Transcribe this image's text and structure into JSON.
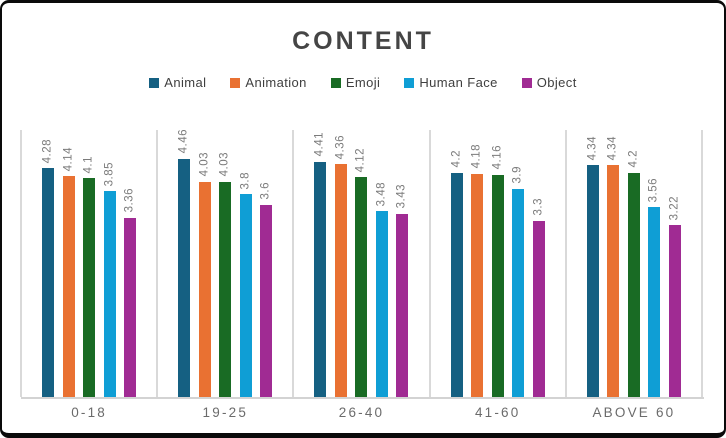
{
  "chart_data": {
    "type": "bar",
    "title": "CONTENT",
    "categories": [
      "0-18",
      "19-25",
      "26-40",
      "41-60",
      "ABOVE 60"
    ],
    "series": [
      {
        "name": "Animal",
        "color": "#156082",
        "values": [
          4.28,
          4.46,
          4.41,
          4.2,
          4.34
        ]
      },
      {
        "name": "Animation",
        "color": "#E97132",
        "values": [
          4.14,
          4.03,
          4.36,
          4.18,
          4.34
        ]
      },
      {
        "name": "Emoji",
        "color": "#196B24",
        "values": [
          4.1,
          4.03,
          4.12,
          4.16,
          4.2
        ]
      },
      {
        "name": "Human Face",
        "color": "#0F9ED5",
        "values": [
          3.85,
          3.8,
          3.48,
          3.9,
          3.56
        ]
      },
      {
        "name": "Object",
        "color": "#A02B93",
        "values": [
          3.36,
          3.6,
          3.43,
          3.3,
          3.22
        ]
      }
    ],
    "xlabel": "",
    "ylabel": "",
    "ylim": [
      0,
      5
    ],
    "legend_position": "top",
    "data_labels": "rotated-vertical-above-bars",
    "gridlines": "vertical-category-boundaries-only",
    "layout": {
      "gridline_color": "#D9D9D9",
      "axis_line_color": "#D3D3D3",
      "title_color": "#454545",
      "legend_text_color": "#3F3F3F",
      "data_label_color": "#7B7B7B",
      "category_label_color": "#6B6B6B",
      "frame_border_color": "#0A0A0A",
      "background_color": "#FFFFFF"
    }
  }
}
